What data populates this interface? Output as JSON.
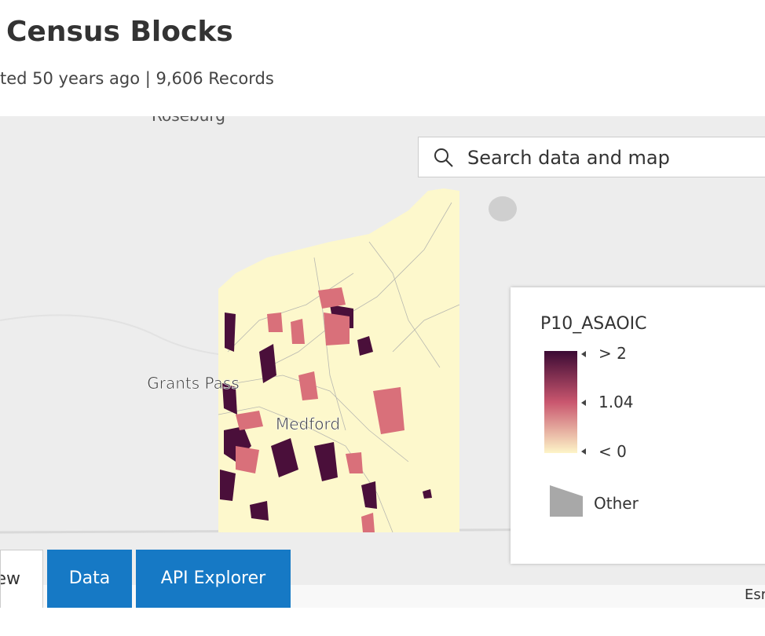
{
  "header": {
    "title": "Census Blocks",
    "subtitle": "ted 50 years ago | 9,606 Records"
  },
  "map": {
    "labels": [
      "Roseburg",
      "Grants Pass",
      "Medford"
    ],
    "search_placeholder": "Search data and map",
    "attribution": "Esri"
  },
  "legend": {
    "field": "P10_ASAOIC",
    "stops": [
      "> 2",
      "1.04",
      "< 0"
    ],
    "other": "Other"
  },
  "tabs": [
    "Overview",
    "Data",
    "API Explorer"
  ]
}
